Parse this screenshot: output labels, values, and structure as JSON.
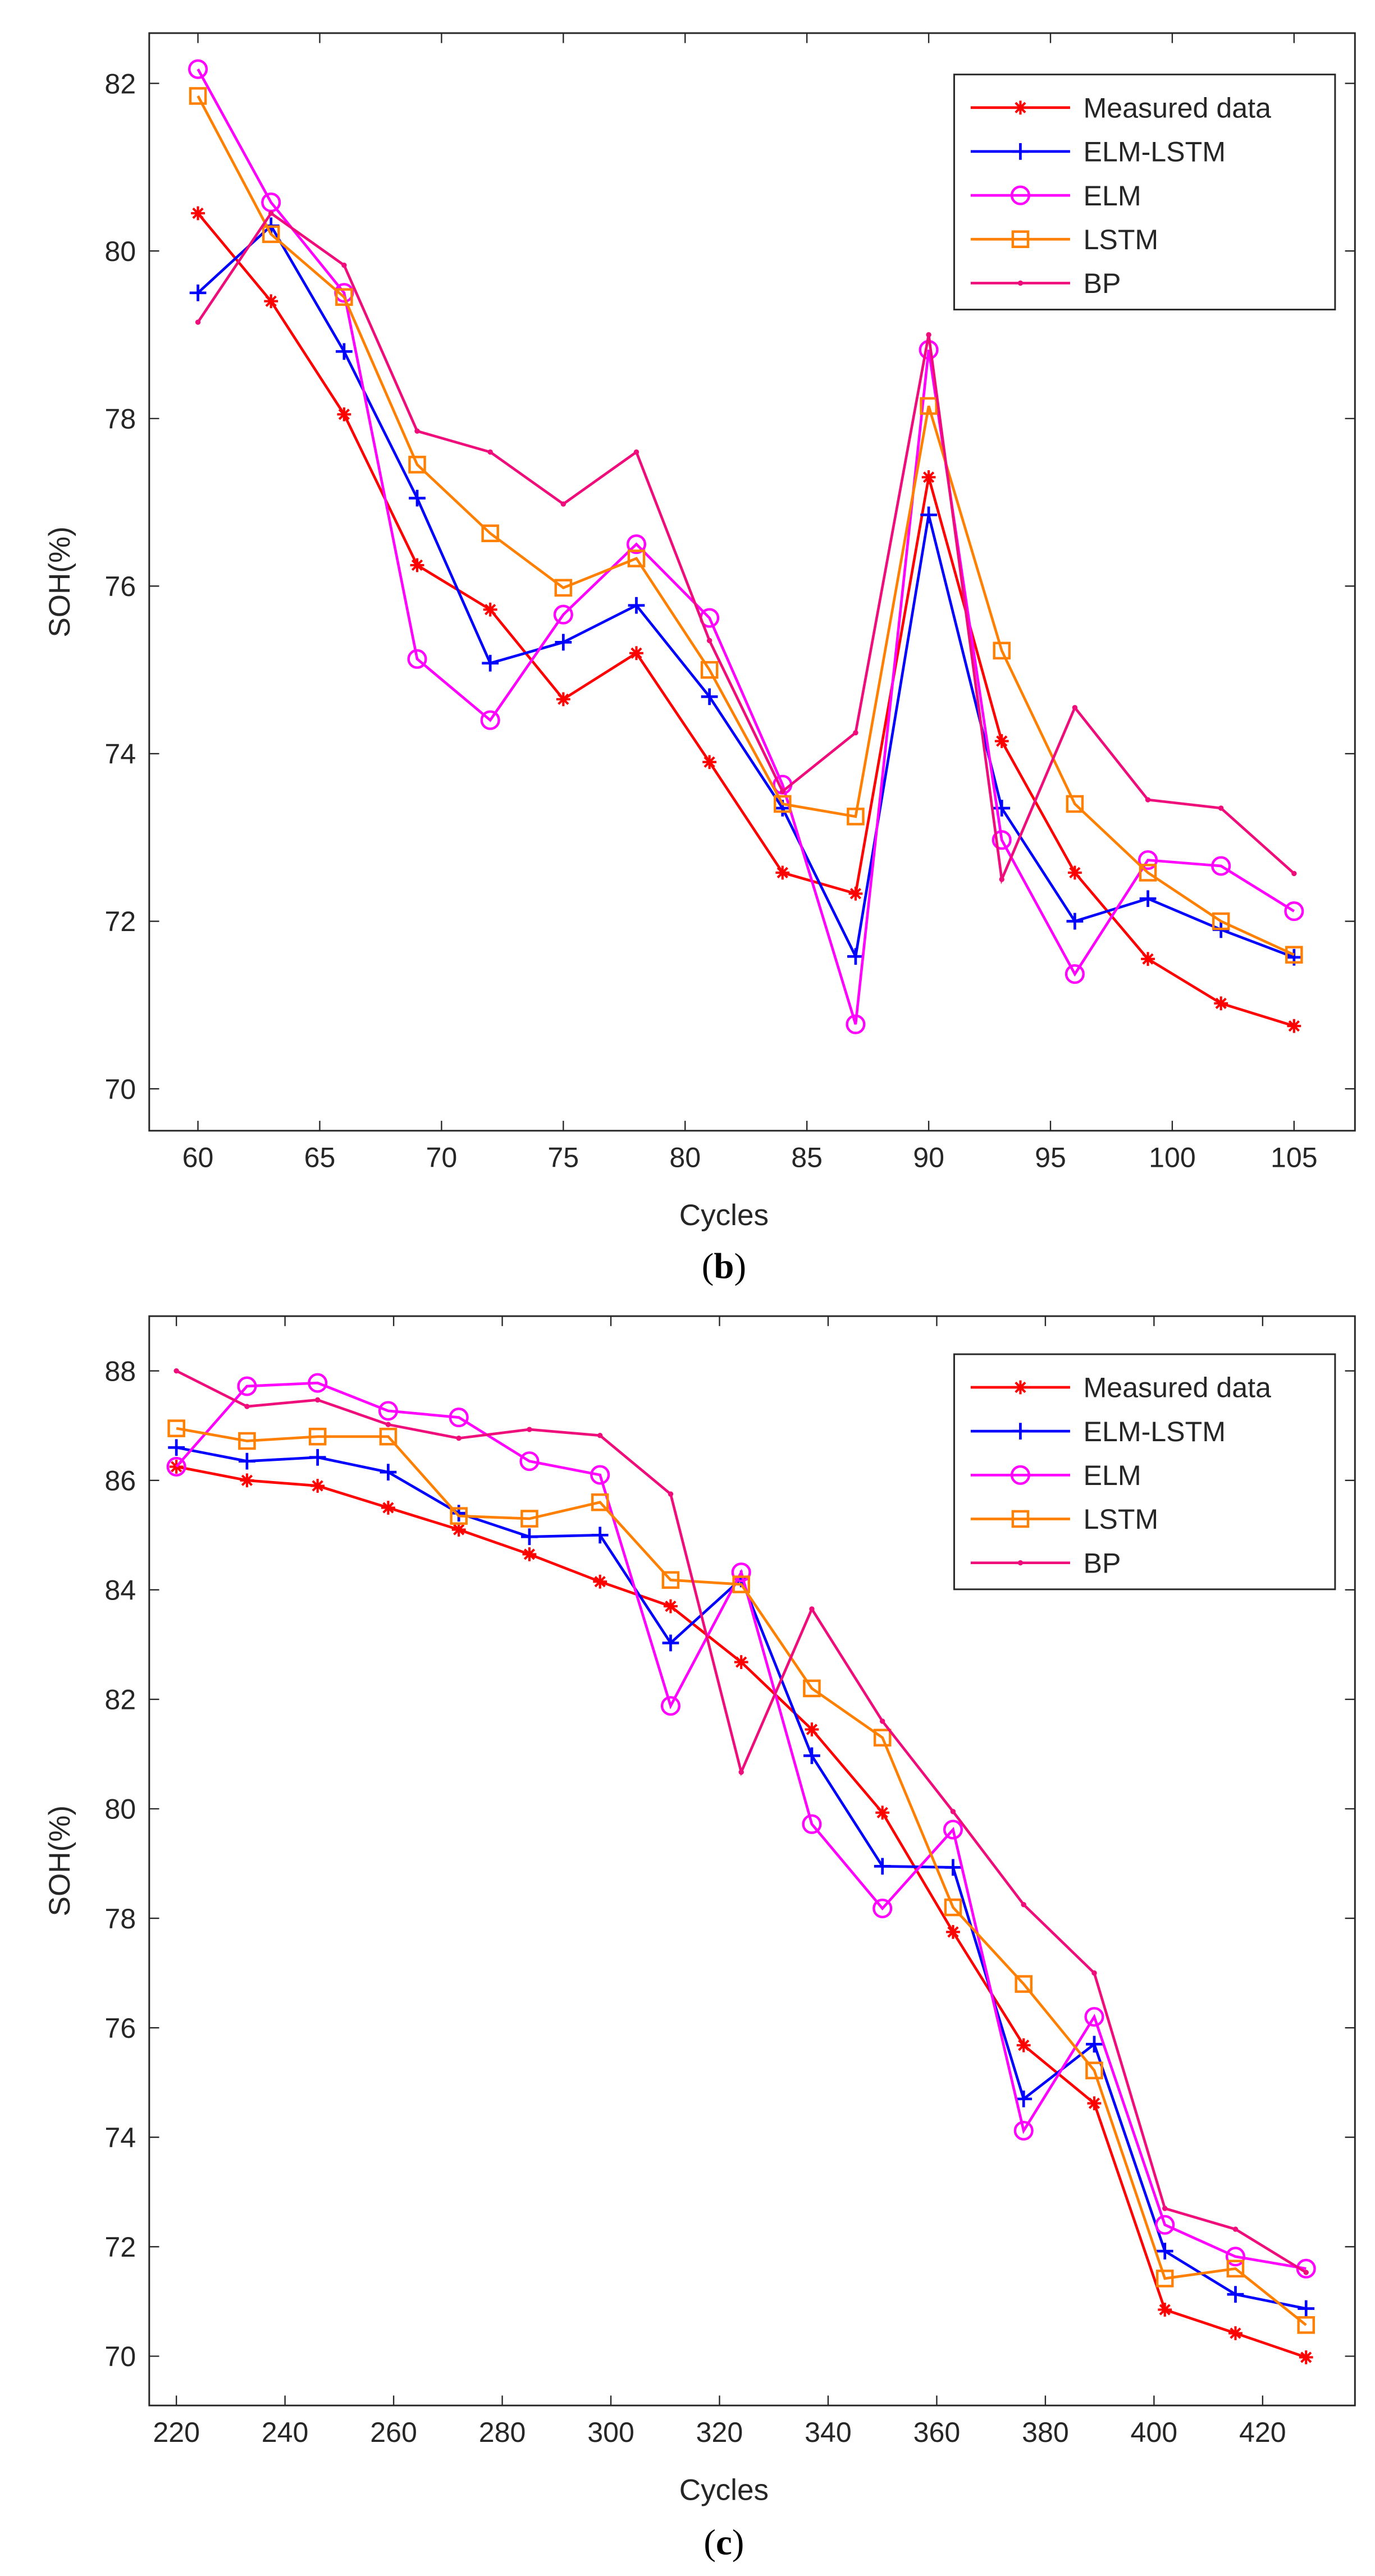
{
  "chart_data": [
    {
      "type": "line",
      "panel_label": "b",
      "xlabel": "Cycles",
      "ylabel": "SOH(%)",
      "xlim": [
        58,
        107.5
      ],
      "ylim": [
        69.5,
        82.6
      ],
      "xticks": [
        60,
        65,
        70,
        75,
        80,
        85,
        90,
        95,
        100,
        105
      ],
      "yticks": [
        70,
        72,
        74,
        76,
        78,
        80,
        82
      ],
      "grid": false,
      "legend_position": "top-right",
      "x": [
        60,
        63,
        66,
        69,
        72,
        75,
        78,
        81,
        84,
        87,
        90,
        93,
        96,
        99,
        102,
        105
      ],
      "series": [
        {
          "name": "Measured data",
          "color": "#ff0000",
          "marker": "asterisk",
          "values": [
            80.45,
            79.4,
            78.05,
            76.25,
            75.72,
            74.65,
            75.2,
            73.9,
            72.58,
            72.33,
            77.3,
            74.15,
            72.58,
            71.55,
            71.02,
            70.75
          ]
        },
        {
          "name": "ELM-LSTM",
          "color": "#0000ff",
          "marker": "plus",
          "values": [
            79.5,
            80.3,
            78.8,
            77.05,
            75.08,
            75.33,
            75.77,
            74.68,
            73.35,
            71.58,
            76.85,
            73.35,
            72.0,
            72.27,
            71.9,
            71.57
          ]
        },
        {
          "name": "ELM",
          "color": "#ff00ff",
          "marker": "circle",
          "values": [
            82.17,
            80.58,
            79.5,
            75.13,
            74.4,
            75.66,
            76.5,
            75.62,
            73.63,
            70.77,
            78.82,
            72.97,
            71.37,
            72.73,
            72.66,
            72.12
          ]
        },
        {
          "name": "LSTM",
          "color": "#ff8000",
          "marker": "square",
          "values": [
            81.85,
            80.2,
            79.45,
            77.45,
            76.63,
            75.98,
            76.33,
            75.0,
            73.4,
            73.25,
            78.15,
            75.23,
            73.4,
            72.58,
            72.0,
            71.6
          ]
        },
        {
          "name": "BP",
          "color": "#ee0d7a",
          "marker": "dot",
          "values": [
            79.15,
            80.45,
            79.83,
            77.85,
            77.6,
            76.98,
            77.6,
            75.35,
            73.55,
            74.25,
            79.0,
            72.5,
            74.55,
            73.45,
            73.35,
            72.57
          ]
        }
      ]
    },
    {
      "type": "line",
      "panel_label": "c",
      "xlabel": "Cycles",
      "ylabel": "SOH(%)",
      "xlim": [
        215,
        437
      ],
      "ylim": [
        69.1,
        89
      ],
      "xticks": [
        220,
        240,
        260,
        280,
        300,
        320,
        340,
        360,
        380,
        400,
        420
      ],
      "yticks": [
        70,
        72,
        74,
        76,
        78,
        80,
        82,
        84,
        86,
        88
      ],
      "grid": false,
      "legend_position": "top-right",
      "x": [
        220,
        233,
        246,
        259,
        272,
        285,
        298,
        311,
        324,
        337,
        350,
        363,
        376,
        389,
        402,
        415,
        428
      ],
      "series": [
        {
          "name": "Measured data",
          "color": "#ff0000",
          "marker": "asterisk",
          "values": [
            86.25,
            86.0,
            85.9,
            85.5,
            85.1,
            84.65,
            84.15,
            83.7,
            82.68,
            81.45,
            79.93,
            77.75,
            75.68,
            74.62,
            70.85,
            70.42,
            69.98
          ]
        },
        {
          "name": "ELM-LSTM",
          "color": "#0000ff",
          "marker": "plus",
          "values": [
            86.6,
            86.35,
            86.42,
            86.15,
            85.4,
            84.97,
            85.0,
            83.03,
            84.2,
            80.97,
            78.95,
            78.93,
            74.7,
            75.7,
            71.92,
            71.13,
            70.87
          ]
        },
        {
          "name": "ELM",
          "color": "#ff00ff",
          "marker": "circle",
          "values": [
            86.25,
            87.72,
            87.78,
            87.27,
            87.15,
            86.35,
            86.1,
            81.88,
            84.32,
            79.72,
            78.18,
            79.62,
            74.12,
            76.2,
            72.4,
            71.82,
            71.6
          ]
        },
        {
          "name": "LSTM",
          "color": "#ff8000",
          "marker": "square",
          "values": [
            86.95,
            86.72,
            86.8,
            86.8,
            85.35,
            85.3,
            85.6,
            84.18,
            84.1,
            82.2,
            81.3,
            78.2,
            76.8,
            75.22,
            71.42,
            71.6,
            70.57
          ]
        },
        {
          "name": "BP",
          "color": "#ee0d7a",
          "marker": "dot",
          "values": [
            88.0,
            87.35,
            87.47,
            87.02,
            86.77,
            86.93,
            86.82,
            85.75,
            80.67,
            83.65,
            81.6,
            79.95,
            78.25,
            77.0,
            72.7,
            72.32,
            71.53
          ]
        }
      ]
    }
  ]
}
